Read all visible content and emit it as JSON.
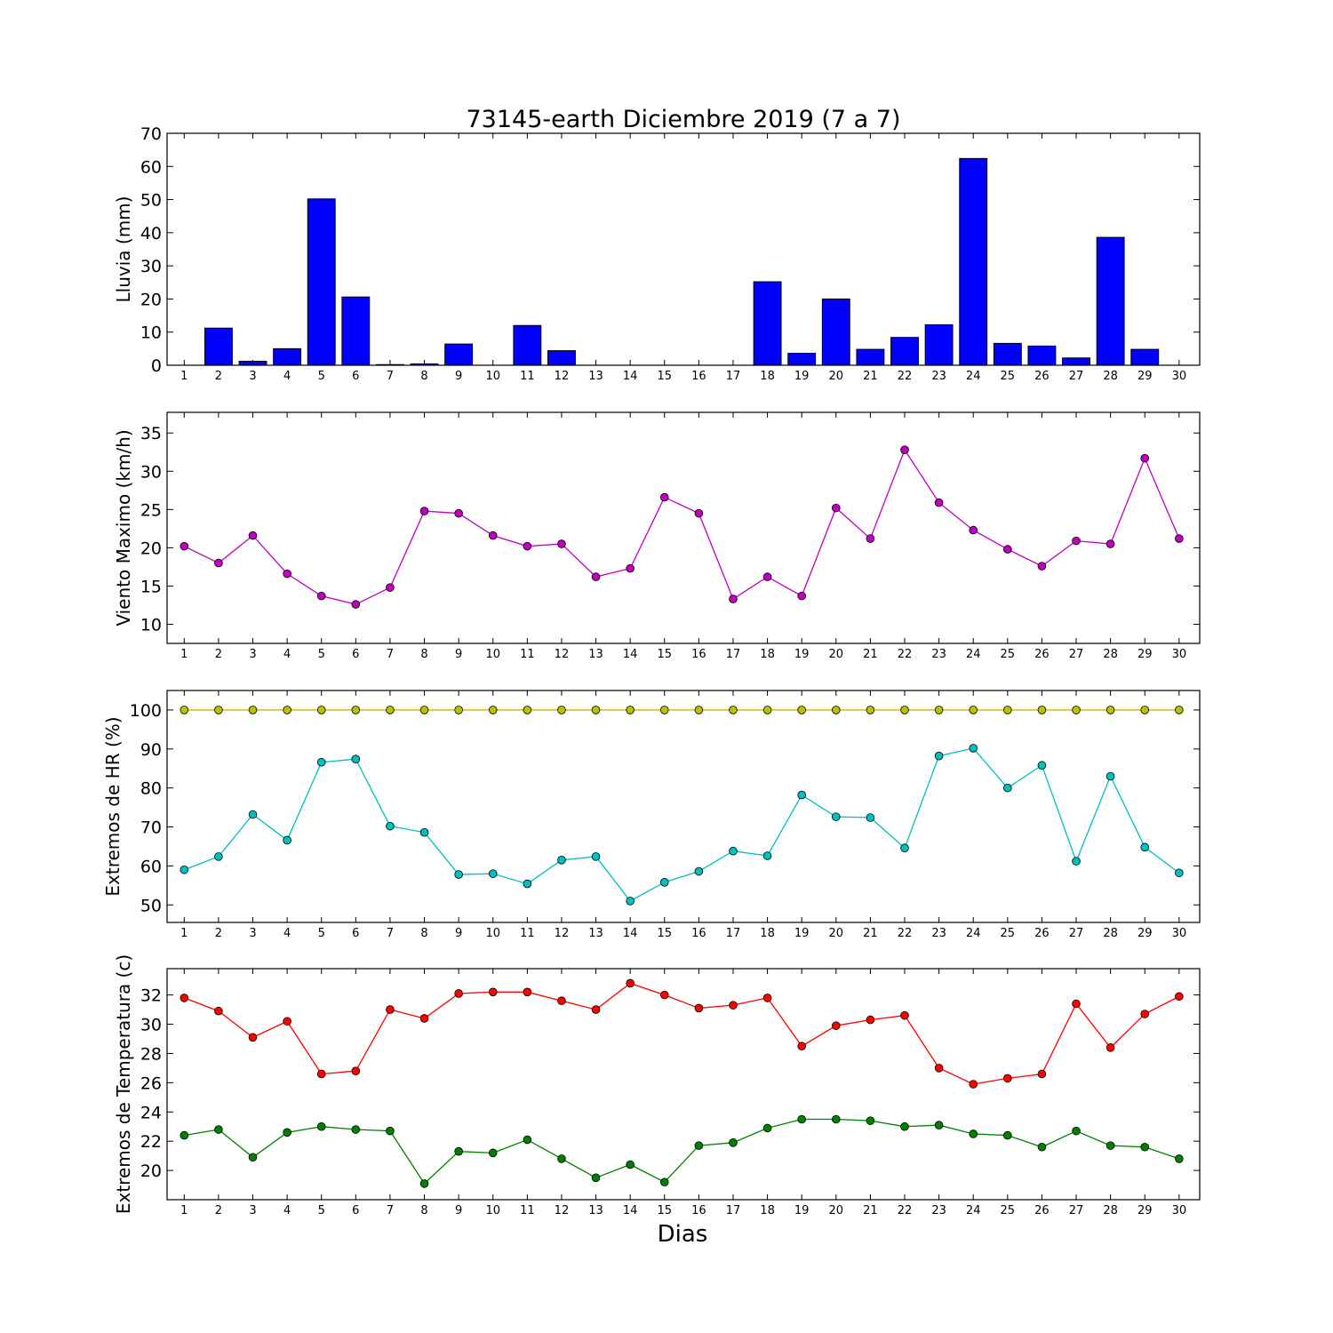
{
  "figure": {
    "title": "73145-earth Diciembre 2019  (7 a 7)",
    "xlabel": "Dias"
  },
  "chart_data": [
    {
      "type": "bar",
      "ylabel": "Lluvia (mm)",
      "ylim": [
        0,
        70
      ],
      "yticks": [
        0,
        10,
        20,
        30,
        40,
        50,
        60,
        70
      ],
      "categories": [
        "1",
        "2",
        "3",
        "4",
        "5",
        "6",
        "7",
        "8",
        "9",
        "10",
        "11",
        "12",
        "13",
        "14",
        "15",
        "16",
        "17",
        "18",
        "19",
        "20",
        "21",
        "22",
        "23",
        "24",
        "25",
        "26",
        "27",
        "28",
        "29",
        "30"
      ],
      "series": [
        {
          "color": "#0000ff",
          "values": [
            0,
            11.2,
            1.2,
            5.0,
            50.2,
            20.6,
            0.2,
            0.4,
            6.4,
            0,
            12.0,
            4.4,
            0,
            0,
            0,
            0,
            0,
            25.2,
            3.6,
            20.0,
            4.8,
            8.4,
            12.2,
            62.4,
            6.6,
            5.8,
            2.2,
            38.6,
            4.8,
            0
          ]
        }
      ]
    },
    {
      "type": "line",
      "ylabel": "Viento Maximo (km/h)",
      "ylim": [
        7.5,
        37.7
      ],
      "yticks": [
        10,
        15,
        20,
        25,
        30,
        35
      ],
      "x": [
        1,
        2,
        3,
        4,
        5,
        6,
        7,
        8,
        9,
        10,
        11,
        12,
        13,
        14,
        15,
        16,
        17,
        18,
        19,
        20,
        21,
        22,
        23,
        24,
        25,
        26,
        27,
        28,
        29,
        30
      ],
      "series": [
        {
          "color": "#bf00bf",
          "values": [
            20.2,
            18.0,
            21.6,
            16.6,
            13.7,
            12.6,
            14.8,
            24.8,
            24.5,
            21.6,
            20.2,
            20.5,
            16.2,
            17.3,
            26.6,
            24.5,
            13.3,
            16.2,
            13.7,
            25.2,
            21.2,
            32.8,
            25.9,
            22.3,
            19.8,
            17.6,
            20.9,
            20.5,
            31.7,
            21.2
          ]
        }
      ]
    },
    {
      "type": "line",
      "ylabel": "Extremos de HR (%)",
      "ylim": [
        45.5,
        105
      ],
      "yticks": [
        50,
        60,
        70,
        80,
        90,
        100
      ],
      "x": [
        1,
        2,
        3,
        4,
        5,
        6,
        7,
        8,
        9,
        10,
        11,
        12,
        13,
        14,
        15,
        16,
        17,
        18,
        19,
        20,
        21,
        22,
        23,
        24,
        25,
        26,
        27,
        28,
        29,
        30
      ],
      "series": [
        {
          "color": "#bfbf00",
          "values": [
            100,
            100,
            100,
            100,
            100,
            100,
            100,
            100,
            100,
            100,
            100,
            100,
            100,
            100,
            100,
            100,
            100,
            100,
            100,
            100,
            100,
            100,
            100,
            100,
            100,
            100,
            100,
            100,
            100,
            100
          ]
        },
        {
          "color": "#00bfbf",
          "values": [
            59,
            62.4,
            73.2,
            66.6,
            86.6,
            87.4,
            70.2,
            68.6,
            57.8,
            58.0,
            55.4,
            61.5,
            62.4,
            51.0,
            55.8,
            58.6,
            63.8,
            62.6,
            78.2,
            72.6,
            72.4,
            64.6,
            88.2,
            90.2,
            80.0,
            85.8,
            61.2,
            83.0,
            64.8,
            58.2
          ]
        }
      ]
    },
    {
      "type": "line",
      "ylabel": "Extremos de Temperatura (c)",
      "ylim": [
        18.0,
        33.8
      ],
      "yticks": [
        20,
        22,
        24,
        26,
        28,
        30,
        32
      ],
      "x": [
        1,
        2,
        3,
        4,
        5,
        6,
        7,
        8,
        9,
        10,
        11,
        12,
        13,
        14,
        15,
        16,
        17,
        18,
        19,
        20,
        21,
        22,
        23,
        24,
        25,
        26,
        27,
        28,
        29,
        30
      ],
      "series": [
        {
          "color": "#ff0000",
          "values": [
            31.8,
            30.9,
            29.1,
            30.2,
            26.6,
            26.8,
            31.0,
            30.4,
            32.1,
            32.2,
            32.2,
            31.6,
            31.0,
            32.8,
            32.0,
            31.1,
            31.3,
            31.8,
            28.5,
            29.9,
            30.3,
            30.6,
            27.0,
            25.9,
            26.3,
            26.6,
            31.4,
            28.4,
            30.7,
            31.9
          ]
        },
        {
          "color": "#007f00",
          "values": [
            22.4,
            22.8,
            20.9,
            22.6,
            23.0,
            22.8,
            22.7,
            19.1,
            21.3,
            21.2,
            22.1,
            20.8,
            19.5,
            20.4,
            19.2,
            21.7,
            21.9,
            22.9,
            23.5,
            23.5,
            23.4,
            23.0,
            23.1,
            22.5,
            22.4,
            21.6,
            22.7,
            21.7,
            21.6,
            20.8
          ]
        }
      ]
    }
  ]
}
